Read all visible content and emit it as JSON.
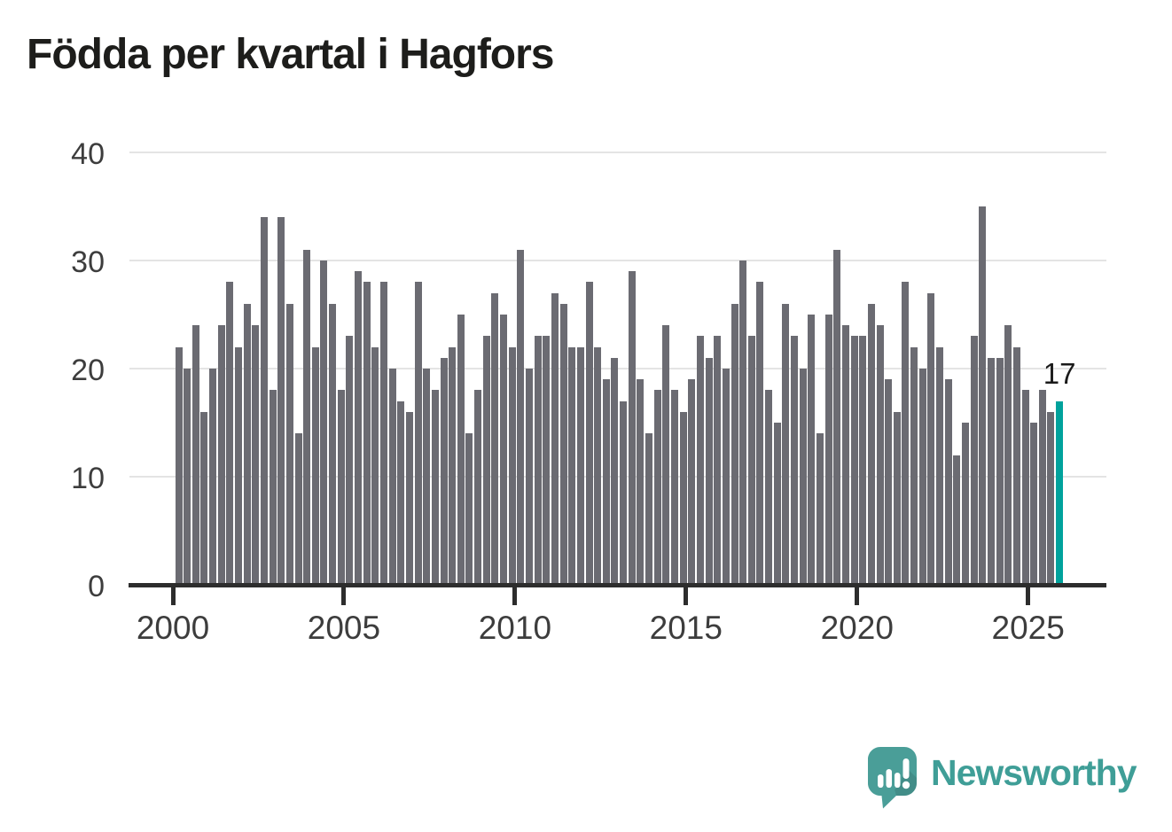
{
  "title": "Födda per kvartal i Hagfors",
  "colors": {
    "bar": "#6b6b72",
    "highlight": "#00a29c",
    "grid": "#e4e4e4",
    "axis": "#2d2d2d",
    "tick_label": "#3d3d3d",
    "title": "#1d1d1b",
    "annotation": "#1a1a1a",
    "logo_teal": "#4a9e98",
    "logo_text": "#3f9e97"
  },
  "chart_data": {
    "type": "bar",
    "title": "Födda per kvartal i Hagfors",
    "start_year": 2000,
    "frequency": "quarterly",
    "values": [
      22,
      20,
      24,
      16,
      20,
      24,
      28,
      22,
      26,
      24,
      34,
      18,
      34,
      26,
      14,
      31,
      22,
      30,
      26,
      18,
      23,
      29,
      28,
      22,
      28,
      20,
      17,
      16,
      28,
      20,
      18,
      21,
      22,
      25,
      14,
      18,
      23,
      27,
      25,
      22,
      31,
      20,
      23,
      23,
      27,
      26,
      22,
      22,
      28,
      22,
      19,
      21,
      17,
      29,
      19,
      14,
      18,
      24,
      18,
      16,
      19,
      23,
      21,
      23,
      20,
      26,
      30,
      23,
      28,
      18,
      15,
      26,
      23,
      20,
      25,
      14,
      25,
      31,
      24,
      23,
      23,
      26,
      24,
      19,
      16,
      28,
      22,
      20,
      27,
      22,
      19,
      12,
      15,
      23,
      35,
      21,
      21,
      24,
      22,
      18,
      15,
      18,
      16,
      17
    ],
    "ylim": [
      0,
      40
    ],
    "y_ticks": [
      0,
      10,
      20,
      30,
      40
    ],
    "x_tick_years": [
      2000,
      2005,
      2010,
      2015,
      2020,
      2025
    ],
    "grid": "horizontal",
    "legend": "none",
    "highlight_last": true,
    "last_value_label": "17"
  },
  "branding": {
    "name": "Newsworthy",
    "icon": "newsworthy-speech-bubble-chart-logo"
  }
}
